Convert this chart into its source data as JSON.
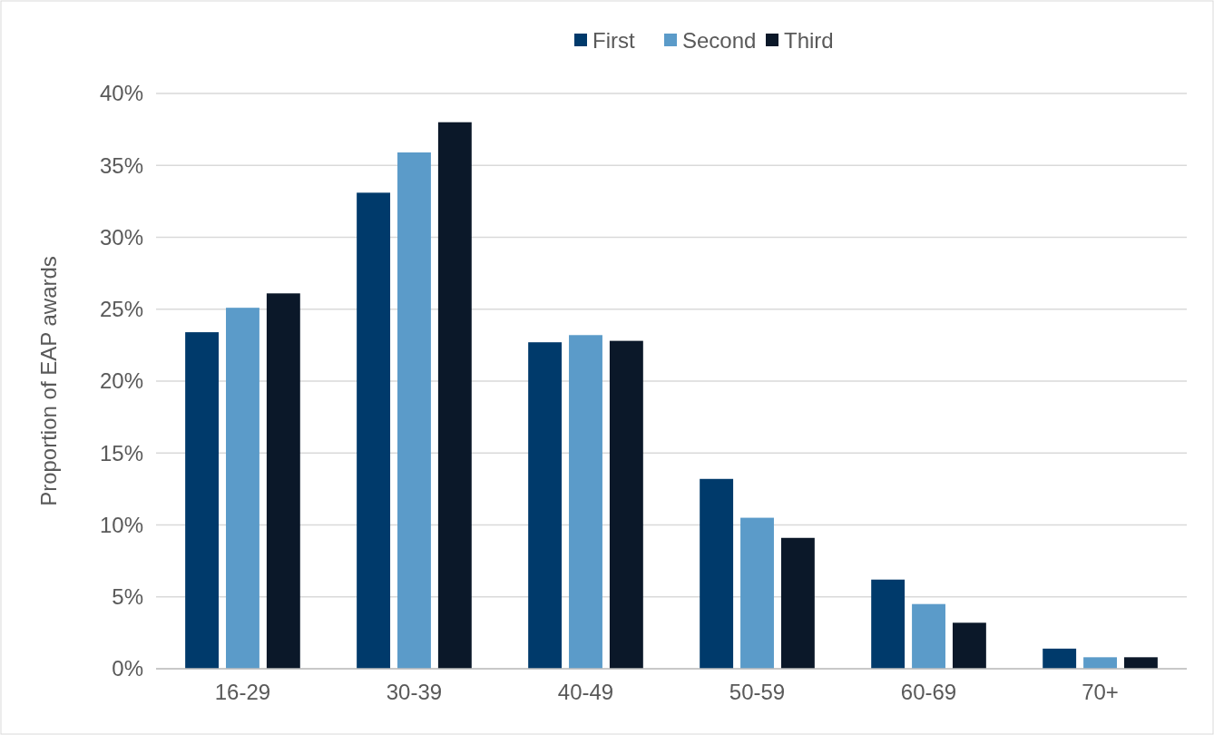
{
  "chart_data": {
    "type": "bar",
    "ylabel": "Proportion of EAP awards",
    "categories": [
      "16-29",
      "30-39",
      "40-49",
      "50-59",
      "60-69",
      "70+"
    ],
    "series": [
      {
        "name": "First",
        "color": "#003a6b",
        "values": [
          23.4,
          33.1,
          22.7,
          13.2,
          6.2,
          1.4
        ]
      },
      {
        "name": "Second",
        "color": "#5b9bc9",
        "values": [
          25.1,
          35.9,
          23.2,
          10.5,
          4.5,
          0.8
        ]
      },
      {
        "name": "Third",
        "color": "#0b1829",
        "values": [
          26.1,
          38.0,
          22.8,
          9.1,
          3.2,
          0.8
        ]
      }
    ],
    "ylim": [
      0,
      40
    ],
    "yticks": [
      {
        "value": 0,
        "label": "0%"
      },
      {
        "value": 5,
        "label": "5%"
      },
      {
        "value": 10,
        "label": "10%"
      },
      {
        "value": 15,
        "label": "15%"
      },
      {
        "value": 20,
        "label": "20%"
      },
      {
        "value": 25,
        "label": "25%"
      },
      {
        "value": 30,
        "label": "30%"
      },
      {
        "value": 35,
        "label": "35%"
      },
      {
        "value": 40,
        "label": "40%"
      }
    ],
    "grid": "y",
    "legend": "top"
  }
}
